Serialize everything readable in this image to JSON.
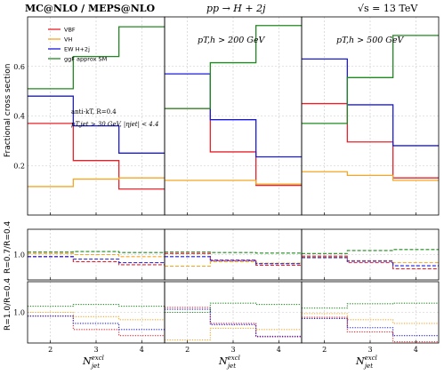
{
  "figure": {
    "title_left": "MC@NLO / MEPS@NLO",
    "title_center": "pp → H + 2j",
    "title_right": "√s = 13 TeV"
  },
  "chart_data": {
    "type": "line",
    "style": "step",
    "colors": {
      "VBF": "#e8202a",
      "VH": "#f5a623",
      "EW H+2j": "#1a1adb",
      "ggF approx SM": "#1f8a1f"
    },
    "legend": {
      "entries": [
        "VBF",
        "VH",
        "EW H+2j",
        "ggF approx SM"
      ],
      "placement": "top-left"
    },
    "annotations": {
      "algo": "anti-kT, R=0.4",
      "cuts": "pT,jet > 30 GeV, |ηjet| < 4.4"
    },
    "x_bins": [
      [
        1.5,
        2.5
      ],
      [
        2.5,
        3.5
      ],
      [
        3.5,
        4.5
      ]
    ],
    "xlim": [
      1.5,
      4.5
    ],
    "xticks": [
      "2",
      "3",
      "4"
    ],
    "xlabel": "N_jet^excl",
    "ylabel_top": "Fractional cross section",
    "ylabel_mid": "R=0.7/R=0.4",
    "ylabel_bot": "R=1.0/R=0.4",
    "panels": [
      {
        "cut_label": "",
        "top": {
          "ylim": [
            0,
            0.8
          ],
          "yticks": [
            "0.2",
            "0.4",
            "0.6"
          ],
          "series": [
            {
              "name": "VBF",
              "values": [
                0.37,
                0.22,
                0.105
              ]
            },
            {
              "name": "VH",
              "values": [
                0.115,
                0.145,
                0.15
              ]
            },
            {
              "name": "EW H+2j",
              "values": [
                0.48,
                0.36,
                0.25
              ]
            },
            {
              "name": "ggF approx SM",
              "values": [
                0.51,
                0.64,
                0.76
              ]
            }
          ]
        },
        "mid": {
          "ylim": [
            0.5,
            1.5
          ],
          "ytick": "1.0",
          "series": [
            {
              "name": "VBF",
              "values": [
                0.96,
                0.86,
                0.8
              ]
            },
            {
              "name": "VH",
              "values": [
                1.02,
                1.0,
                0.96
              ]
            },
            {
              "name": "EW H+2j",
              "values": [
                0.96,
                0.91,
                0.84
              ]
            },
            {
              "name": "ggF approx SM",
              "values": [
                1.05,
                1.06,
                1.04
              ]
            }
          ]
        },
        "bot": {
          "ylim": [
            0.5,
            1.5
          ],
          "ytick": "1.0",
          "series": [
            {
              "name": "VBF",
              "values": [
                0.94,
                0.72,
                0.62
              ]
            },
            {
              "name": "VH",
              "values": [
                1.0,
                0.93,
                0.88
              ]
            },
            {
              "name": "EW H+2j",
              "values": [
                0.94,
                0.82,
                0.72
              ]
            },
            {
              "name": "ggF approx SM",
              "values": [
                1.1,
                1.13,
                1.1
              ]
            }
          ]
        }
      },
      {
        "cut_label": "pT,h > 200 GeV",
        "top": {
          "ylim": [
            0,
            0.8
          ],
          "yticks": [],
          "series": [
            {
              "name": "VBF",
              "values": [
                0.43,
                0.255,
                0.12
              ]
            },
            {
              "name": "VH",
              "values": [
                0.14,
                0.14,
                0.125
              ]
            },
            {
              "name": "EW H+2j",
              "values": [
                0.57,
                0.385,
                0.235
              ]
            },
            {
              "name": "ggF approx SM",
              "values": [
                0.43,
                0.615,
                0.765
              ]
            }
          ]
        },
        "mid": {
          "ylim": [
            0.5,
            1.5
          ],
          "ytick": "",
          "series": [
            {
              "name": "VBF",
              "values": [
                1.02,
                0.88,
                0.79
              ]
            },
            {
              "name": "VH",
              "values": [
                0.77,
                0.86,
                0.83
              ]
            },
            {
              "name": "EW H+2j",
              "values": [
                0.96,
                0.89,
                0.82
              ]
            },
            {
              "name": "ggF approx SM",
              "values": [
                1.05,
                1.04,
                1.03
              ]
            }
          ]
        },
        "bot": {
          "ylim": [
            0.5,
            1.5
          ],
          "ytick": "",
          "series": [
            {
              "name": "VBF",
              "values": [
                1.08,
                0.82,
                0.6
              ]
            },
            {
              "name": "VH",
              "values": [
                0.55,
                0.74,
                0.72
              ]
            },
            {
              "name": "EW H+2j",
              "values": [
                1.05,
                0.8,
                0.61
              ]
            },
            {
              "name": "ggF approx SM",
              "values": [
                1.0,
                1.15,
                1.13
              ]
            }
          ]
        }
      },
      {
        "cut_label": "pT,h > 500 GeV",
        "top": {
          "ylim": [
            0,
            0.8
          ],
          "yticks": [],
          "series": [
            {
              "name": "VBF",
              "values": [
                0.45,
                0.295,
                0.15
              ]
            },
            {
              "name": "VH",
              "values": [
                0.175,
                0.16,
                0.14
              ]
            },
            {
              "name": "EW H+2j",
              "values": [
                0.63,
                0.445,
                0.28
              ]
            },
            {
              "name": "ggF approx SM",
              "values": [
                0.37,
                0.555,
                0.725
              ]
            }
          ]
        },
        "mid": {
          "ylim": [
            0.5,
            1.5
          ],
          "ytick": "",
          "series": [
            {
              "name": "VBF",
              "values": [
                0.97,
                0.84,
                0.72
              ]
            },
            {
              "name": "VH",
              "values": [
                0.95,
                0.88,
                0.84
              ]
            },
            {
              "name": "EW H+2j",
              "values": [
                0.94,
                0.87,
                0.78
              ]
            },
            {
              "name": "ggF approx SM",
              "values": [
                1.02,
                1.08,
                1.1
              ]
            }
          ]
        },
        "bot": {
          "ylim": [
            0.5,
            1.5
          ],
          "ytick": "",
          "series": [
            {
              "name": "VBF",
              "values": [
                0.92,
                0.68,
                0.52
              ]
            },
            {
              "name": "VH",
              "values": [
                0.98,
                0.88,
                0.82
              ]
            },
            {
              "name": "EW H+2j",
              "values": [
                0.9,
                0.75,
                0.62
              ]
            },
            {
              "name": "ggF approx SM",
              "values": [
                1.07,
                1.14,
                1.15
              ]
            }
          ]
        }
      }
    ]
  }
}
